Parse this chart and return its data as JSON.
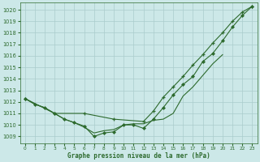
{
  "background_color": "#cce8e8",
  "grid_color": "#aacccc",
  "line_color": "#2d6a2d",
  "xlabel": "Graphe pression niveau de la mer (hPa)",
  "ylim": [
    1008.4,
    1020.6
  ],
  "xlim": [
    -0.5,
    23.5
  ],
  "yticks": [
    1009,
    1010,
    1011,
    1012,
    1013,
    1014,
    1015,
    1016,
    1017,
    1018,
    1019,
    1020
  ],
  "xticks": [
    0,
    1,
    2,
    3,
    4,
    5,
    6,
    7,
    8,
    9,
    10,
    11,
    12,
    13,
    14,
    15,
    16,
    17,
    18,
    19,
    20,
    21,
    22,
    23
  ],
  "series": [
    {
      "x": [
        0,
        1,
        2,
        3,
        4,
        5,
        6,
        7,
        8,
        9,
        10,
        11,
        12,
        13,
        14,
        15,
        16,
        17,
        18,
        19,
        20,
        21,
        22,
        23
      ],
      "y": [
        1012.3,
        1011.8,
        1011.5,
        1011.0,
        1010.5,
        1010.2,
        1009.9,
        1009.0,
        1009.3,
        1009.4,
        1010.0,
        1010.0,
        1009.7,
        1010.5,
        1011.5,
        1012.6,
        1013.5,
        1014.2,
        1015.5,
        1016.2,
        1017.3,
        1018.5,
        1019.5,
        1020.3
      ],
      "marker": "D",
      "markersize": 2.0,
      "linestyle": "-",
      "linewidth": 0.8
    },
    {
      "x": [
        0,
        3,
        6,
        9,
        12,
        13,
        14,
        15,
        16,
        17,
        18,
        19,
        20,
        21,
        22,
        23
      ],
      "y": [
        1012.3,
        1011.0,
        1011.0,
        1010.5,
        1010.3,
        1011.2,
        1012.4,
        1013.3,
        1014.2,
        1015.2,
        1016.1,
        1017.1,
        1018.0,
        1019.0,
        1019.8,
        1020.3
      ],
      "marker": "+",
      "markersize": 3.5,
      "linestyle": "-",
      "linewidth": 0.8,
      "markeredgewidth": 0.9
    },
    {
      "x": [
        0,
        1,
        2,
        3,
        4,
        5,
        6,
        7,
        8,
        9,
        10,
        11,
        12,
        13,
        14,
        15,
        16,
        17,
        18,
        19,
        20
      ],
      "y": [
        1012.3,
        1011.8,
        1011.5,
        1011.0,
        1010.5,
        1010.2,
        1009.8,
        1009.3,
        1009.5,
        1009.6,
        1010.0,
        1010.1,
        1010.1,
        1010.4,
        1010.5,
        1011.0,
        1012.5,
        1013.3,
        1014.3,
        1015.3,
        1016.1
      ],
      "marker": null,
      "markersize": 0,
      "linestyle": "-",
      "linewidth": 0.8
    }
  ]
}
